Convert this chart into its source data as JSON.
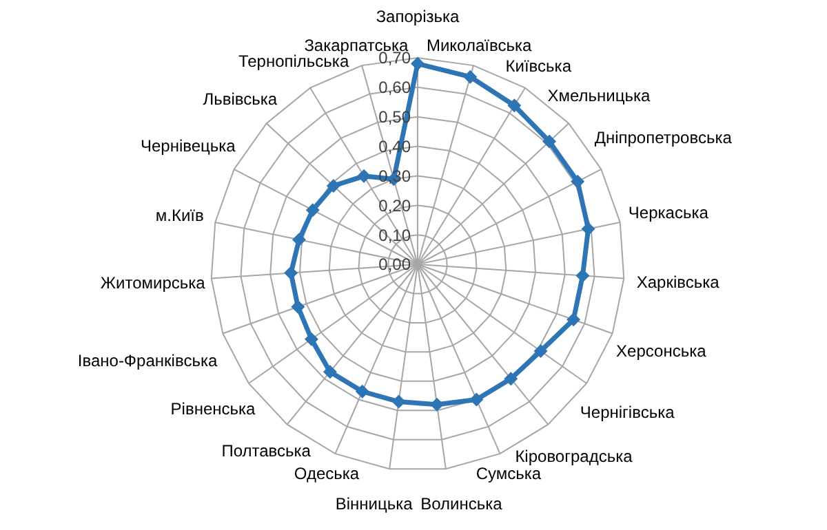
{
  "chart_data": {
    "type": "radar",
    "categories": [
      "Запорізька",
      "Миколаївська",
      "Київська",
      "Хмельницька",
      "Дніпропетровська",
      "Черкаська",
      "Харківська",
      "Херсонська",
      "Чернігівська",
      "Кіровоградська",
      "Сумська",
      "Волинська",
      "Вінницька",
      "Одеська",
      "Полтавська",
      "Рівненська",
      "Івано-Франківська",
      "Житомирська",
      "м.Київ",
      "Чернівецька",
      "Львівська",
      "Тернопільська",
      "Закарпатська"
    ],
    "series": [
      {
        "color": "#2e75b6",
        "values": [
          0.68,
          0.66,
          0.63,
          0.61,
          0.61,
          0.59,
          0.56,
          0.56,
          0.51,
          0.5,
          0.5,
          0.48,
          0.47,
          0.47,
          0.47,
          0.44,
          0.43,
          0.43,
          0.41,
          0.4,
          0.39,
          0.35,
          0.3
        ]
      }
    ],
    "ylim": [
      0,
      0.7
    ],
    "yticks": [
      {
        "value": 0,
        "label": "0,00"
      },
      {
        "value": 0.1,
        "label": "0,10"
      },
      {
        "value": 0.2,
        "label": "0,20"
      },
      {
        "value": 0.3,
        "label": "0,30"
      },
      {
        "value": 0.4,
        "label": "0,40"
      },
      {
        "value": 0.5,
        "label": "0,50"
      },
      {
        "value": 0.6,
        "label": "0,60"
      },
      {
        "value": 0.7,
        "label": "0,70"
      }
    ],
    "grid": true,
    "marker": "diamond",
    "line_style": "solid",
    "legend": false
  }
}
